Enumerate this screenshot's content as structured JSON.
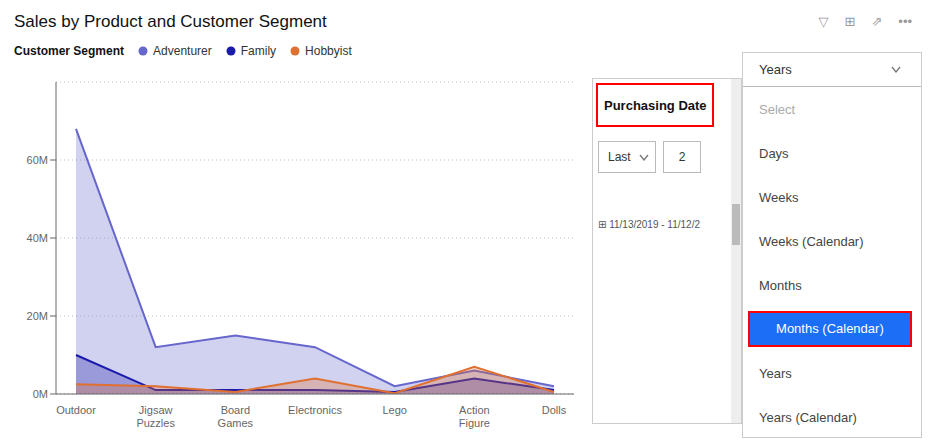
{
  "chart_data": {
    "type": "area",
    "title": "Sales by Product and Customer Segment",
    "legend_title": "Customer Segment",
    "categories": [
      "Outdoor",
      "Jigsaw Puzzles",
      "Board Games",
      "Electronics",
      "Lego",
      "Action Figure",
      "Dolls"
    ],
    "series": [
      {
        "name": "Adventurer",
        "color": "#6666cc",
        "values": [
          68,
          12,
          15,
          12,
          2,
          6,
          2
        ]
      },
      {
        "name": "Family",
        "color": "#1a1aad",
        "values": [
          10,
          1,
          1,
          1,
          0.5,
          4,
          1
        ]
      },
      {
        "name": "Hobbyist",
        "color": "#e07030",
        "values": [
          2.5,
          2,
          0.5,
          4,
          0.2,
          7,
          0.5
        ]
      }
    ],
    "ylim": [
      0,
      80
    ],
    "yticks": [
      {
        "value": 0,
        "label": "0M"
      },
      {
        "value": 20,
        "label": "20M"
      },
      {
        "value": 40,
        "label": "40M"
      },
      {
        "value": 60,
        "label": "60M"
      }
    ],
    "grid": true,
    "legend": "top",
    "annotations": [
      "▽",
      "⊞",
      "⇗",
      "•••",
      "Purchasing Date",
      "Last",
      "2",
      "⊞ 11/13/2019 - 11/12/2",
      "Years",
      "Select",
      "Days",
      "Weeks",
      "Weeks (Calendar)",
      "Months",
      "Months (Calendar)",
      "Years",
      "Years (Calendar)"
    ]
  }
}
